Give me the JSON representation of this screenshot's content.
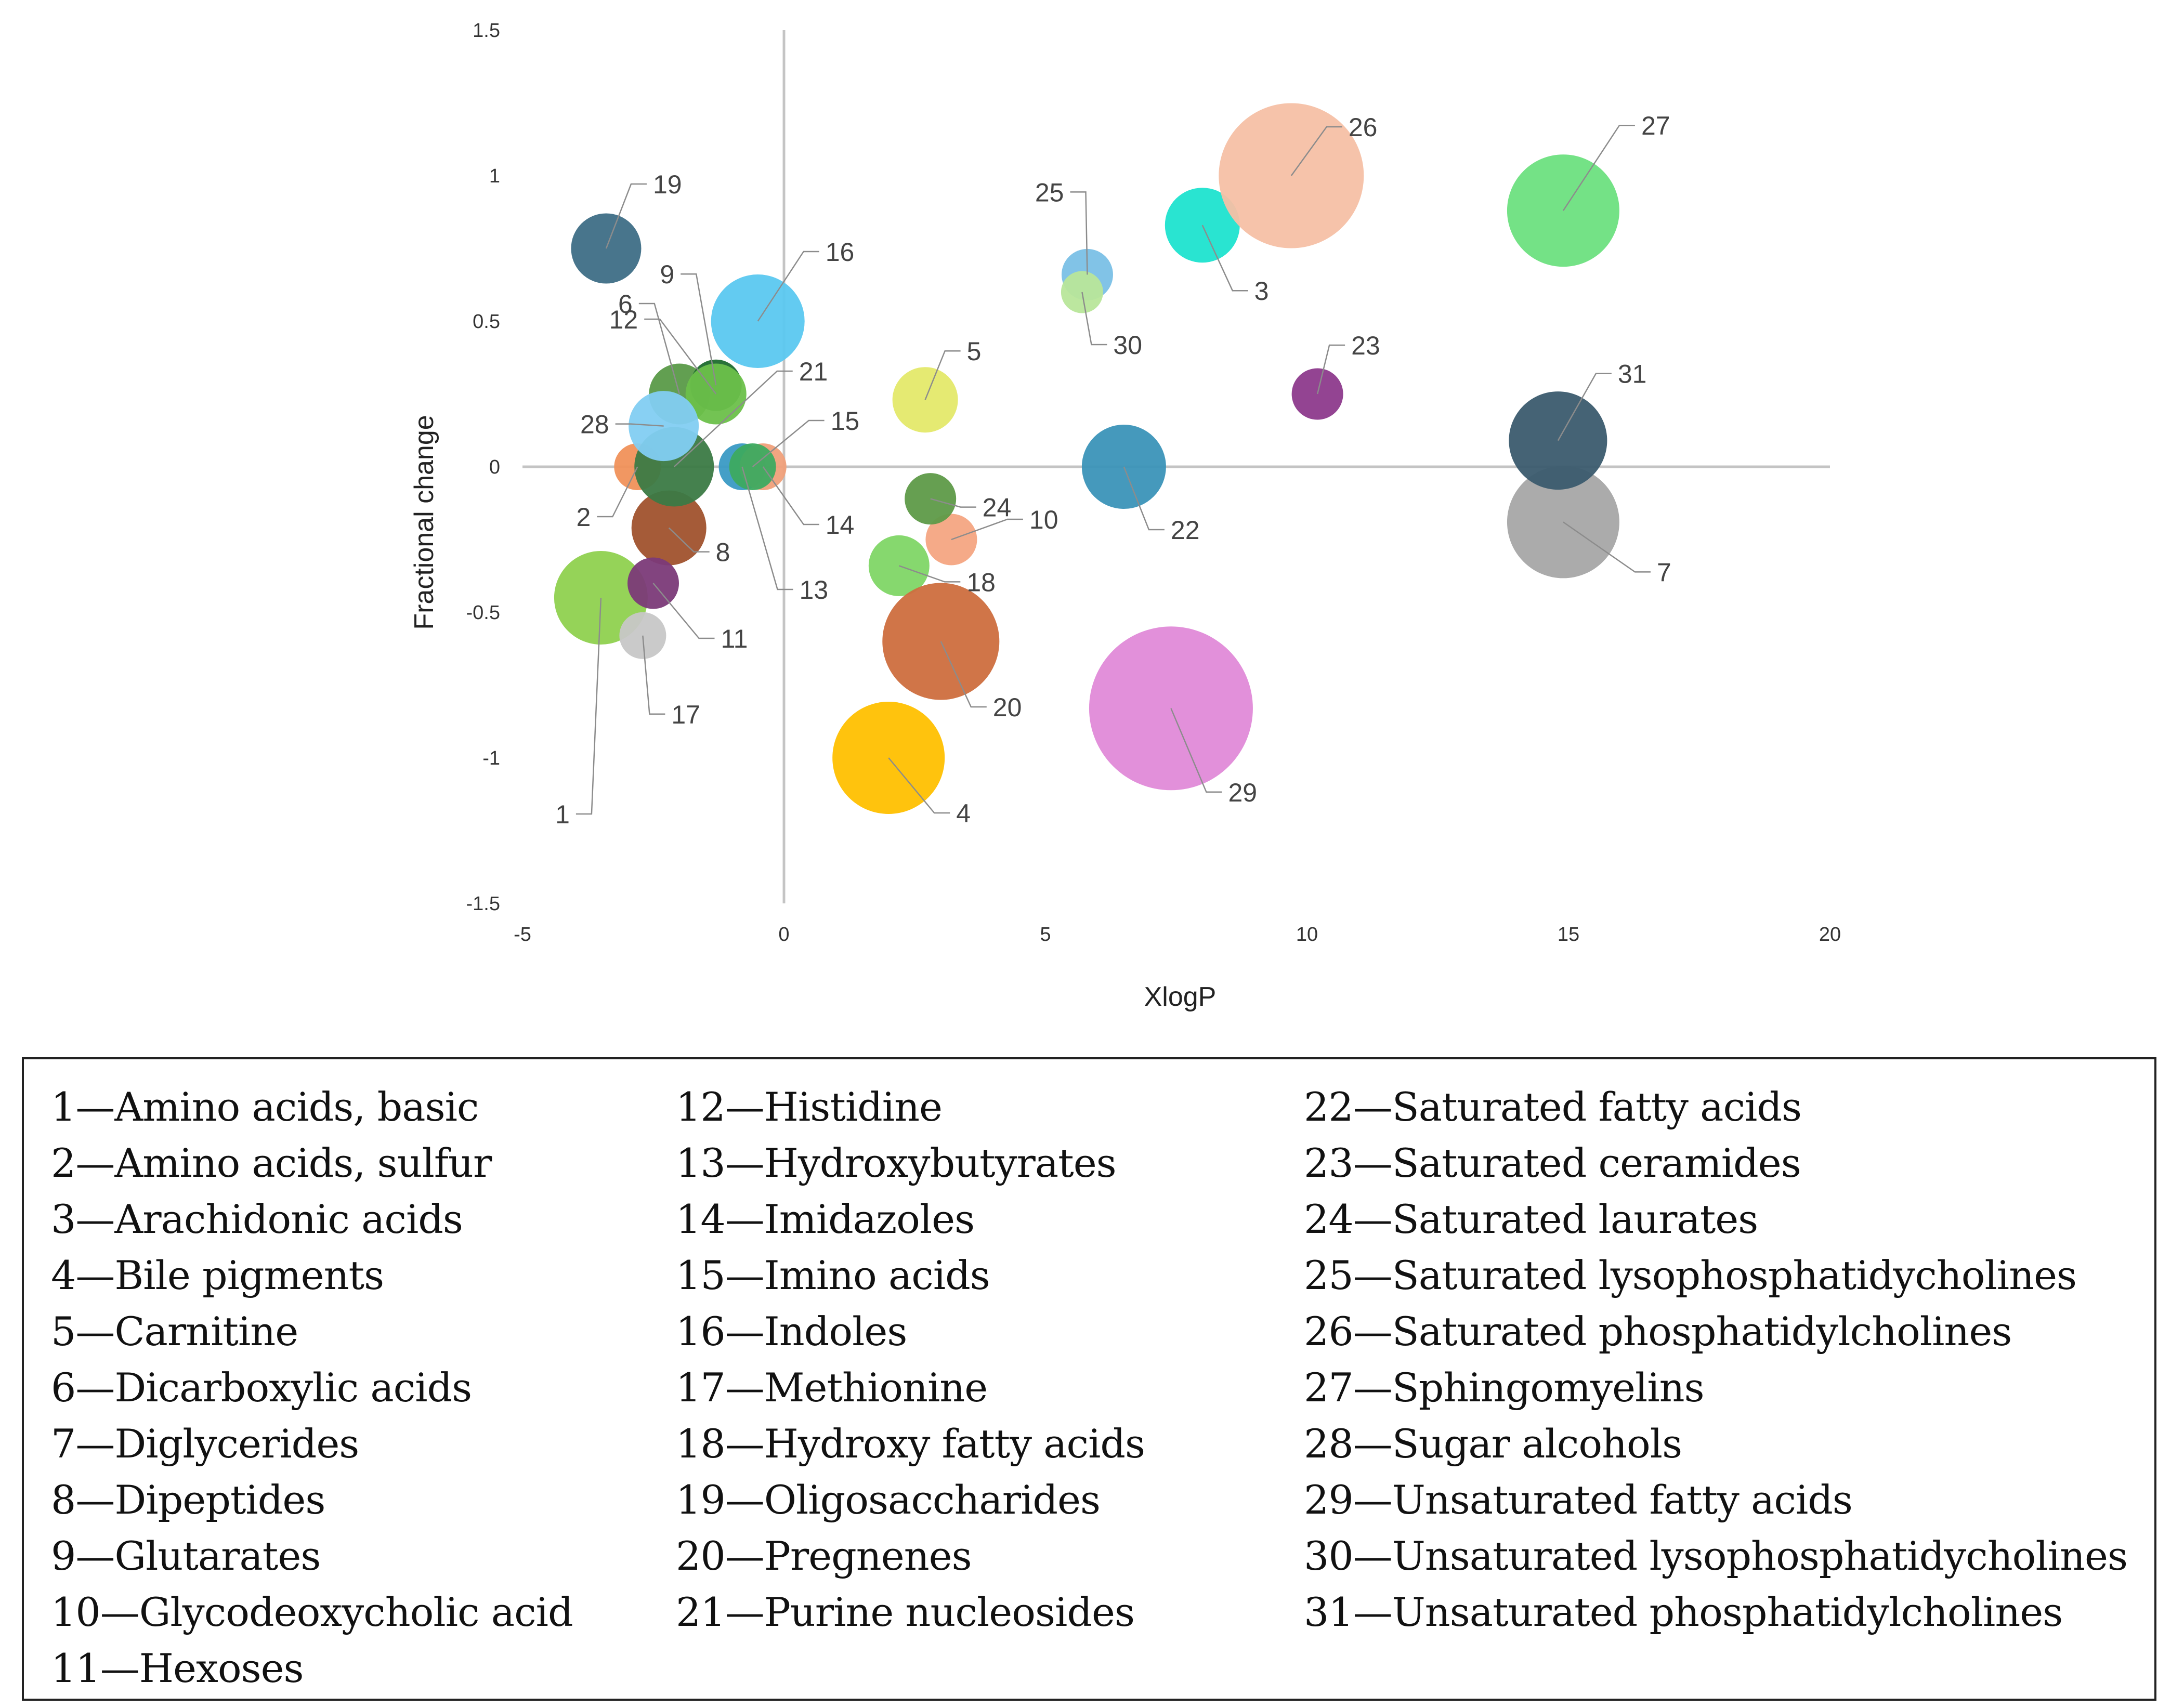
{
  "chart_data": {
    "type": "scatter",
    "title": "",
    "xlabel": "XlogP",
    "ylabel": "Fractional change",
    "xlim": [
      -5,
      20
    ],
    "ylim": [
      -1.5,
      1.5
    ],
    "x_ticks": [
      -5,
      0,
      5,
      10,
      15,
      20
    ],
    "y_ticks": [
      1.5,
      1,
      0.5,
      0,
      -0.5,
      -1,
      -1.5
    ],
    "x_tick_labels": [
      "-5",
      "0",
      "5",
      "10",
      "15",
      "20"
    ],
    "y_tick_labels": [
      "1.5",
      "1",
      "0.5",
      "0",
      "-0.5",
      "-1",
      "-1.5"
    ],
    "points": [
      {
        "id": "1",
        "x": -3.5,
        "y": -0.45,
        "size": 2.0,
        "color": "#8fd14f"
      },
      {
        "id": "2",
        "x": -2.8,
        "y": 0.0,
        "size": 1.0,
        "color": "#f0915a"
      },
      {
        "id": "3",
        "x": 8.0,
        "y": 0.83,
        "size": 1.6,
        "color": "#1de3cf"
      },
      {
        "id": "4",
        "x": 2.0,
        "y": -1.0,
        "size": 2.4,
        "color": "#ffc000"
      },
      {
        "id": "5",
        "x": 2.7,
        "y": 0.23,
        "size": 1.4,
        "color": "#e4e96a"
      },
      {
        "id": "6",
        "x": -2.0,
        "y": 0.25,
        "size": 1.3,
        "color": "#5a9a48"
      },
      {
        "id": "7",
        "x": 14.9,
        "y": -0.19,
        "size": 2.4,
        "color": "#a6a6a6"
      },
      {
        "id": "8",
        "x": -2.2,
        "y": -0.21,
        "size": 1.6,
        "color": "#a0522d"
      },
      {
        "id": "9",
        "x": -1.3,
        "y": 0.28,
        "size": 1.1,
        "color": "#1e6a2e"
      },
      {
        "id": "10",
        "x": 3.2,
        "y": -0.25,
        "size": 1.1,
        "color": "#f4a582"
      },
      {
        "id": "11",
        "x": -2.5,
        "y": -0.4,
        "size": 1.1,
        "color": "#7b3a78"
      },
      {
        "id": "12",
        "x": -1.3,
        "y": 0.25,
        "size": 1.3,
        "color": "#6cc04a"
      },
      {
        "id": "13",
        "x": -0.8,
        "y": 0.0,
        "size": 1.0,
        "color": "#3a9ac4"
      },
      {
        "id": "14",
        "x": -0.4,
        "y": 0.0,
        "size": 1.0,
        "color": "#f0a07a"
      },
      {
        "id": "15",
        "x": -0.6,
        "y": 0.0,
        "size": 1.0,
        "color": "#3daa60"
      },
      {
        "id": "16",
        "x": -0.5,
        "y": 0.5,
        "size": 2.0,
        "color": "#5bc8f0"
      },
      {
        "id": "17",
        "x": -2.7,
        "y": -0.58,
        "size": 1.0,
        "color": "#c7c7c7"
      },
      {
        "id": "18",
        "x": 2.2,
        "y": -0.34,
        "size": 1.3,
        "color": "#7fd666"
      },
      {
        "id": "19",
        "x": -3.4,
        "y": 0.75,
        "size": 1.5,
        "color": "#3e6e86"
      },
      {
        "id": "20",
        "x": 3.0,
        "y": -0.6,
        "size": 2.5,
        "color": "#cd6e3e"
      },
      {
        "id": "21",
        "x": -2.1,
        "y": 0.0,
        "size": 1.7,
        "color": "#3b7a45"
      },
      {
        "id": "22",
        "x": 6.5,
        "y": 0.0,
        "size": 1.8,
        "color": "#3b93b8"
      },
      {
        "id": "23",
        "x": 10.2,
        "y": 0.25,
        "size": 1.1,
        "color": "#8d3a8c"
      },
      {
        "id": "24",
        "x": 2.8,
        "y": -0.11,
        "size": 1.1,
        "color": "#5e9a48"
      },
      {
        "id": "25",
        "x": 5.8,
        "y": 0.66,
        "size": 1.1,
        "color": "#7ac0e6"
      },
      {
        "id": "26",
        "x": 9.7,
        "y": 1.0,
        "size": 3.1,
        "color": "#f5c0a5"
      },
      {
        "id": "27",
        "x": 14.9,
        "y": 0.88,
        "size": 2.4,
        "color": "#6de07f"
      },
      {
        "id": "28",
        "x": -2.3,
        "y": 0.14,
        "size": 1.5,
        "color": "#82cdf2"
      },
      {
        "id": "29",
        "x": 7.4,
        "y": -0.83,
        "size": 3.5,
        "color": "#e08ad8"
      },
      {
        "id": "30",
        "x": 5.7,
        "y": 0.6,
        "size": 0.9,
        "color": "#b8e69a"
      },
      {
        "id": "31",
        "x": 14.8,
        "y": 0.09,
        "size": 2.1,
        "color": "#3b5b6e"
      }
    ]
  },
  "legend": {
    "columns": [
      [
        "1—Amino acids, basic",
        "2—Amino acids, sulfur",
        "3—Arachidonic acids",
        "4—Bile pigments",
        "5—Carnitine",
        "6—Dicarboxylic acids",
        "7—Diglycerides",
        "8—Dipeptides",
        "9—Glutarates",
        "10—Glycodeoxycholic acid",
        "11—Hexoses"
      ],
      [
        "12—Histidine",
        "13—Hydroxybutyrates",
        "14—Imidazoles",
        "15—Imino acids",
        "16—Indoles",
        "17—Methionine",
        "18—Hydroxy fatty acids",
        "19—Oligosaccharides",
        "20—Pregnenes",
        "21—Purine nucleosides"
      ],
      [
        "22—Saturated fatty acids",
        "23—Saturated ceramides",
        "24—Saturated laurates",
        "25—Saturated lysophosphatidycholines",
        "26—Saturated phosphatidylcholines",
        "27—Sphingomyelins",
        "28—Sugar alcohols",
        "29—Unsaturated fatty acids",
        "30—Unsaturated lysophosphatidycholines",
        "31—Unsaturated phosphatidylcholines"
      ]
    ]
  }
}
